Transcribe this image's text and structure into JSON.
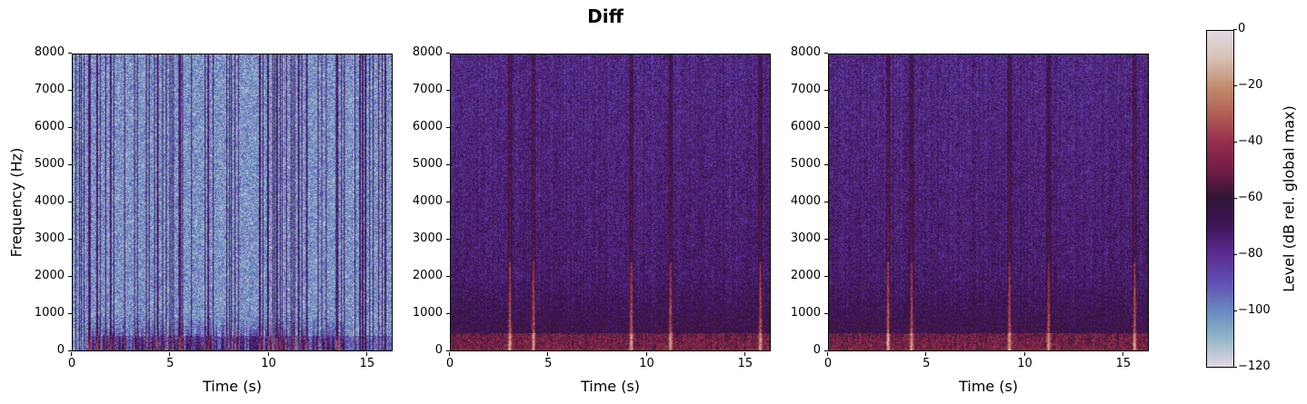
{
  "figure": {
    "title": "Diff",
    "ylabel": "Frequency (Hz)",
    "xlabel": "Time (s)",
    "colorbar_label": "Level (dB rel. global max)",
    "colorbar_ticks": [
      "0",
      "−20",
      "−40",
      "−60",
      "−80",
      "−100",
      "−120"
    ],
    "yticks": [
      "8000",
      "7000",
      "6000",
      "5000",
      "4000",
      "3000",
      "2000",
      "1000",
      "0"
    ],
    "xticks": [
      "0",
      "5",
      "10",
      "15"
    ],
    "colormap_colors": [
      "#e2d9e2",
      "#d8c2b4",
      "#c18a6a",
      "#b05e55",
      "#962e4e",
      "#6e1c45",
      "#2f1436",
      "#3d1458",
      "#5b2a8f",
      "#6050b4",
      "#6887c0",
      "#8bb5c6",
      "#e2d9e2"
    ]
  },
  "chart_data": [
    {
      "type": "heatmap",
      "title": "",
      "panel": 1,
      "description": "Spectrogram, mostly low level (light blue/white background) with dark purple vertical speech bands and harmonics below 1000 Hz",
      "xlabel": "Time (s)",
      "ylabel": "Frequency (Hz)",
      "xlim": [
        0,
        16.3
      ],
      "ylim": [
        0,
        8000
      ],
      "xticks": [
        0,
        5,
        10,
        15
      ],
      "yticks": [
        0,
        1000,
        2000,
        3000,
        4000,
        5000,
        6000,
        7000,
        8000
      ],
      "dominant_level_db": -100
    },
    {
      "type": "heatmap",
      "title": "",
      "panel": 2,
      "description": "Spectrogram with purple background (~-75 dB) and bright vertical transients near t=3, 4.2, 9.2, 11.2, 15.8 s; harmonics below 500 Hz",
      "xlabel": "Time (s)",
      "ylabel": "",
      "xlim": [
        0,
        16.3
      ],
      "ylim": [
        0,
        8000
      ],
      "xticks": [
        0,
        5,
        10,
        15
      ],
      "yticks": [
        0,
        1000,
        2000,
        3000,
        4000,
        5000,
        6000,
        7000,
        8000
      ],
      "transient_times_s": [
        3.0,
        4.2,
        9.2,
        11.2,
        15.8
      ],
      "dominant_level_db": -75
    },
    {
      "type": "heatmap",
      "title": "",
      "panel": 3,
      "description": "Spectrogram similar to panel 2, purple background with bright transients near t=3, 4.2, 9.2, 11.2, 15.6 s",
      "xlabel": "Time (s)",
      "ylabel": "",
      "xlim": [
        0,
        16.3
      ],
      "ylim": [
        0,
        8000
      ],
      "xticks": [
        0,
        5,
        10,
        15
      ],
      "yticks": [
        0,
        1000,
        2000,
        3000,
        4000,
        5000,
        6000,
        7000,
        8000
      ],
      "transient_times_s": [
        3.0,
        4.2,
        9.2,
        11.2,
        15.6
      ],
      "dominant_level_db": -75
    }
  ],
  "colorbar": {
    "min": -120,
    "max": 0,
    "ticks": [
      0,
      -20,
      -40,
      -60,
      -80,
      -100,
      -120
    ]
  }
}
